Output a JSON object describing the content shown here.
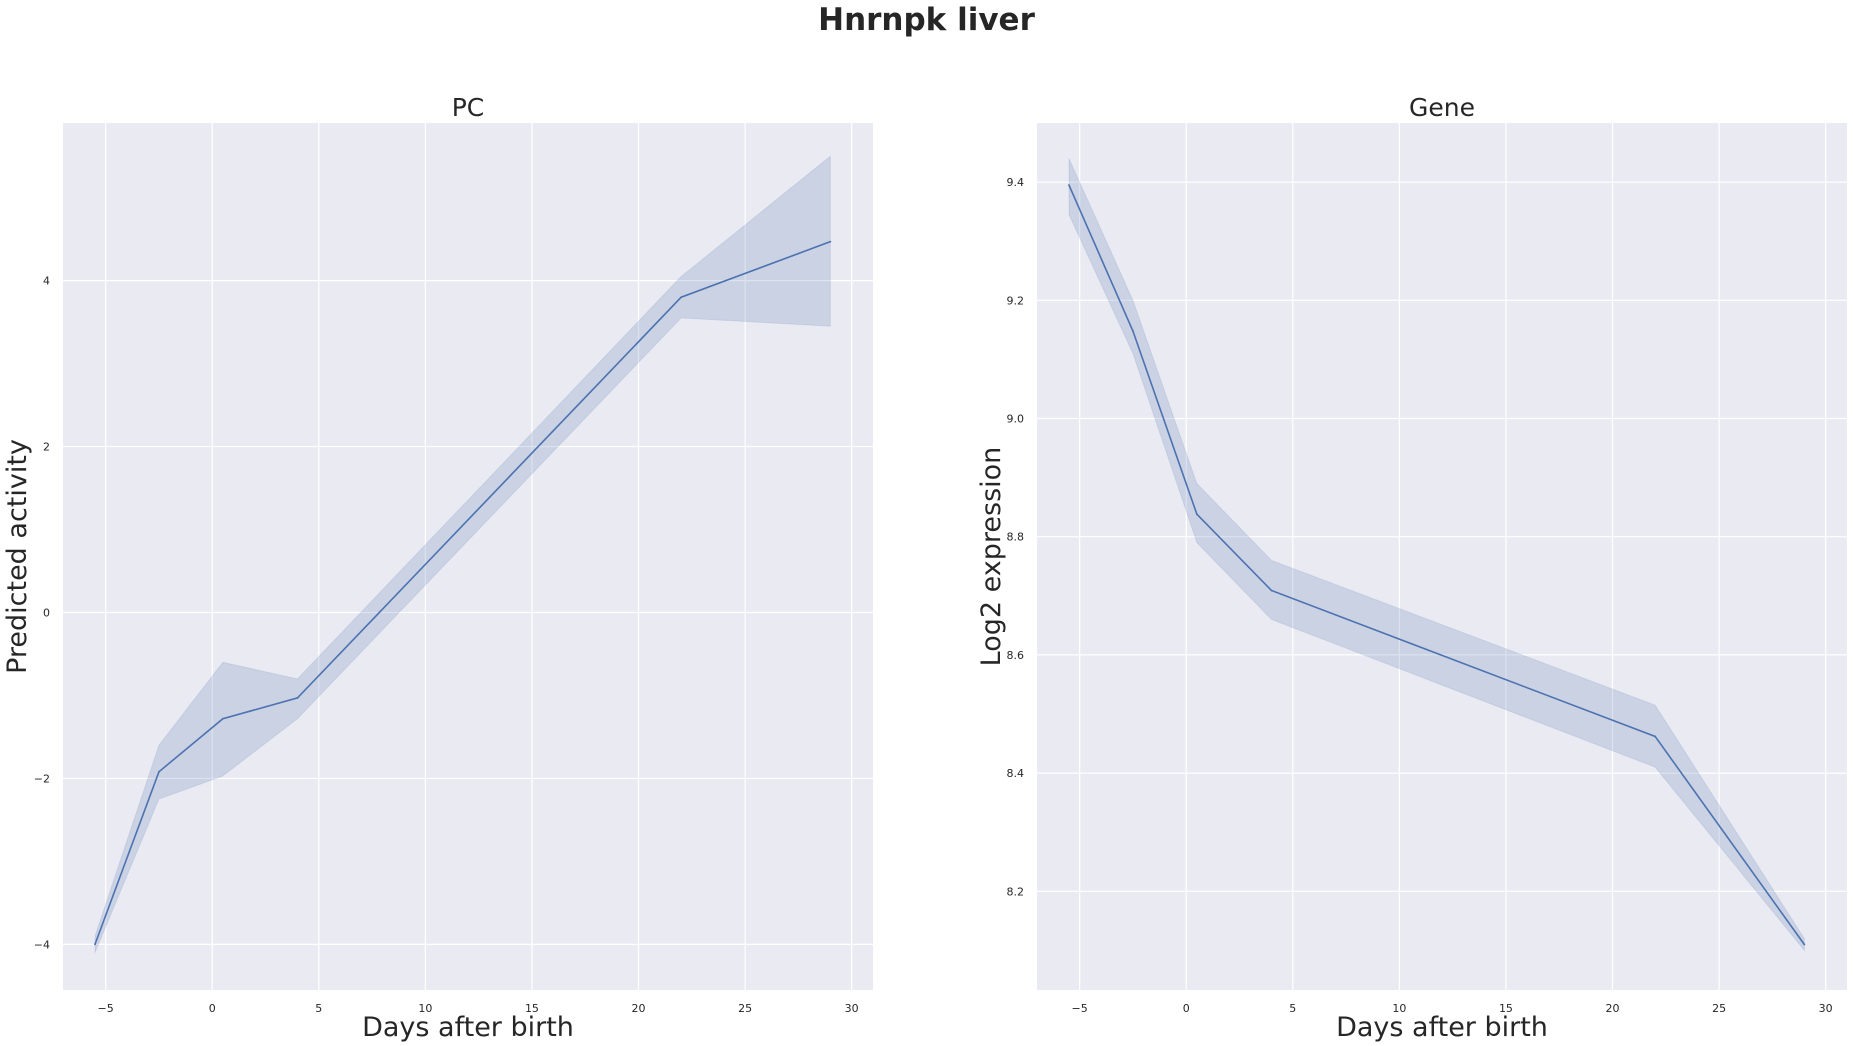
{
  "figure": {
    "title": "Hnrnpk liver"
  },
  "colors": {
    "background": "#eaeaf2",
    "grid": "#ffffff",
    "line": "#4c72b0",
    "band": "#4c72b0"
  },
  "chart_data": [
    {
      "type": "line",
      "title": "PC",
      "xlabel": "Days after birth",
      "ylabel": "Predicted activity",
      "xlim": [
        -7,
        31
      ],
      "ylim": [
        -4.55,
        5.9
      ],
      "xticks": [
        -5,
        0,
        5,
        10,
        15,
        20,
        25,
        30
      ],
      "xtick_labels": [
        "−5",
        "0",
        "5",
        "10",
        "15",
        "20",
        "25",
        "30"
      ],
      "yticks": [
        -4,
        -2,
        0,
        2,
        4
      ],
      "ytick_labels": [
        "−4",
        "−2",
        "0",
        "2",
        "4"
      ],
      "grid": true,
      "series": [
        {
          "x": [
            -5.5,
            -2.5,
            0.5,
            4,
            22,
            29
          ],
          "y": [
            -4.0,
            -1.92,
            -1.28,
            -1.03,
            3.8,
            4.47
          ],
          "ci_low": [
            -4.1,
            -2.25,
            -1.97,
            -1.28,
            3.55,
            3.45
          ],
          "ci_high": [
            -3.9,
            -1.6,
            -0.6,
            -0.8,
            4.05,
            5.5
          ]
        }
      ]
    },
    {
      "type": "line",
      "title": "Gene",
      "xlabel": "Days after birth",
      "ylabel": "Log2 expression",
      "xlim": [
        -7,
        31
      ],
      "ylim": [
        8.033,
        9.5
      ],
      "xticks": [
        -5,
        0,
        5,
        10,
        15,
        20,
        25,
        30
      ],
      "xtick_labels": [
        "−5",
        "0",
        "5",
        "10",
        "15",
        "20",
        "25",
        "30"
      ],
      "yticks": [
        8.2,
        8.4,
        8.6,
        8.8,
        9.0,
        9.2,
        9.4
      ],
      "ytick_labels": [
        "8.2",
        "8.4",
        "8.6",
        "8.8",
        "9.0",
        "9.2",
        "9.4"
      ],
      "grid": true,
      "series": [
        {
          "x": [
            -5.5,
            -2.5,
            0.5,
            4,
            22,
            29
          ],
          "y": [
            9.395,
            9.148,
            8.838,
            8.709,
            8.462,
            8.11
          ],
          "ci_low": [
            9.345,
            9.11,
            8.79,
            8.66,
            8.41,
            8.1
          ],
          "ci_high": [
            9.44,
            9.2,
            8.89,
            8.76,
            8.515,
            8.12
          ]
        }
      ]
    }
  ]
}
